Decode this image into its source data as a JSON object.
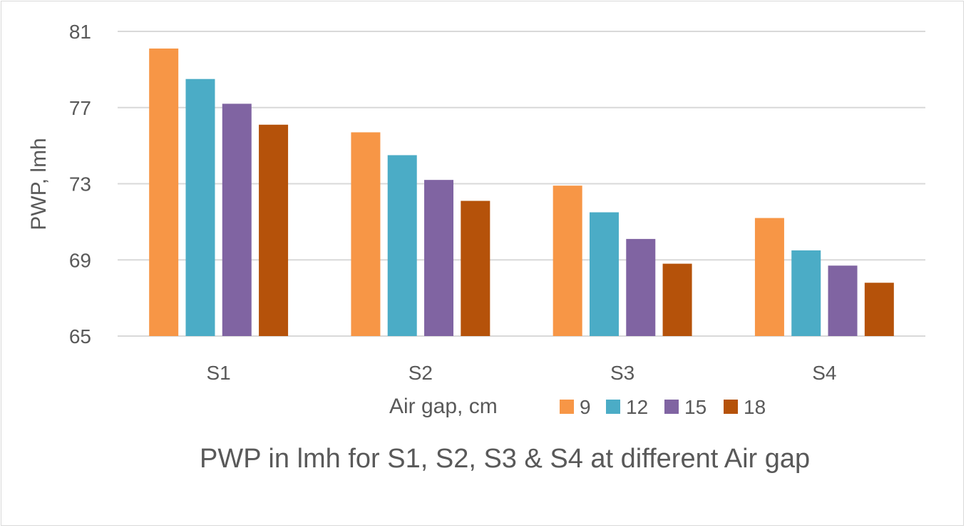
{
  "chart_data": {
    "type": "bar",
    "title": "PWP in lmh for S1, S2, S3 & S4 at different Air gap",
    "xlabel": "",
    "ylabel": "PWP, lmh",
    "legend_title": "Air gap, cm",
    "legend_position": "bottom",
    "grid": true,
    "ylim": [
      65,
      81
    ],
    "yticks": [
      "81",
      "77",
      "73",
      "69",
      "65"
    ],
    "categories": [
      "S1",
      "S2",
      "S3",
      "S4"
    ],
    "series": [
      {
        "name": "9",
        "color": "#F79646",
        "values": [
          80.1,
          75.7,
          72.9,
          71.2
        ]
      },
      {
        "name": "12",
        "color": "#4BACC6",
        "values": [
          78.5,
          74.5,
          71.5,
          69.5
        ]
      },
      {
        "name": "15",
        "color": "#8064A2",
        "values": [
          77.2,
          73.2,
          70.1,
          68.7
        ]
      },
      {
        "name": "18",
        "color": "#B5520A",
        "values": [
          76.1,
          72.1,
          68.8,
          67.8
        ]
      }
    ]
  }
}
